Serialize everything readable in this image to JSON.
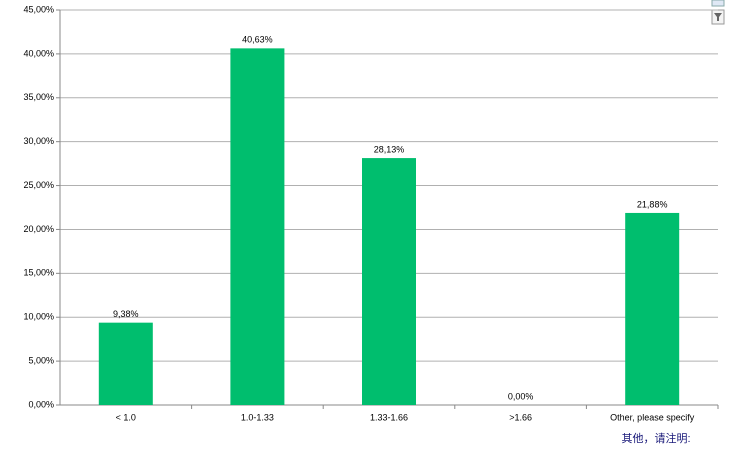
{
  "chart_data": {
    "type": "bar",
    "categories": [
      "< 1.0",
      "1.0-1.33",
      "1.33-1.66",
      ">1.66",
      "Other, please specify"
    ],
    "values": [
      9.38,
      40.63,
      28.13,
      0,
      21.88
    ],
    "value_labels": [
      "9,38%",
      "40,63%",
      "28,13%",
      "0,00%",
      "21,88%"
    ],
    "color": "#00be6e",
    "ylim": [
      0,
      45
    ],
    "yticks": [
      {
        "value": 0,
        "label": "0,00%"
      },
      {
        "value": 5,
        "label": "5,00%"
      },
      {
        "value": 10,
        "label": "10,00%"
      },
      {
        "value": 15,
        "label": "15,00%"
      },
      {
        "value": 20,
        "label": "20,00%"
      },
      {
        "value": 25,
        "label": "25,00%"
      },
      {
        "value": 30,
        "label": "30,00%"
      },
      {
        "value": 35,
        "label": "35,00%"
      },
      {
        "value": 40,
        "label": "40,00%"
      },
      {
        "value": 45,
        "label": "45,00%"
      }
    ],
    "grid": true,
    "annotation": "其他，请注明:"
  }
}
